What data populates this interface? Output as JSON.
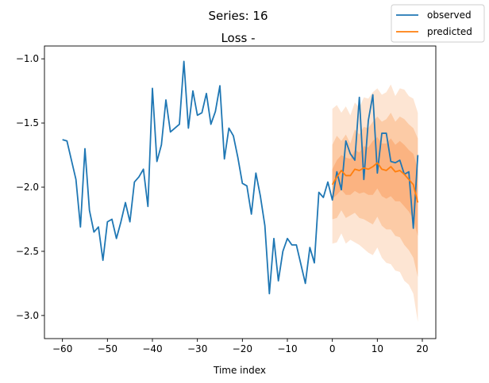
{
  "chart_data": {
    "type": "line",
    "title": "Series: 16",
    "subtitle": "Loss -",
    "xlabel": "Time index",
    "ylabel": "",
    "xlim": [
      -64,
      23
    ],
    "ylim": [
      -3.18,
      -0.9
    ],
    "xticks": [
      -60,
      -50,
      -40,
      -30,
      -20,
      -10,
      0,
      10,
      20
    ],
    "yticks": [
      -3.0,
      -2.5,
      -2.0,
      -1.5,
      -1.0
    ],
    "grid": false,
    "legend": "upper-right-outside",
    "colors": {
      "observed": "#1f77b4",
      "predicted": "#ff7f0e",
      "band_outer": "#fde5d3",
      "band_mid": "#fccba6",
      "band_inner": "#fbb381"
    },
    "series": [
      {
        "name": "observed",
        "x": [
          -60,
          -59,
          -58,
          -57,
          -56,
          -55,
          -54,
          -53,
          -52,
          -51,
          -50,
          -49,
          -48,
          -47,
          -46,
          -45,
          -44,
          -43,
          -42,
          -41,
          -40,
          -39,
          -38,
          -37,
          -36,
          -35,
          -34,
          -33,
          -32,
          -31,
          -30,
          -29,
          -28,
          -27,
          -26,
          -25,
          -24,
          -23,
          -22,
          -21,
          -20,
          -19,
          -18,
          -17,
          -16,
          -15,
          -14,
          -13,
          -12,
          -11,
          -10,
          -9,
          -8,
          -7,
          -6,
          -5,
          -4,
          -3,
          -2,
          -1,
          0,
          1,
          2,
          3,
          4,
          5,
          6,
          7,
          8,
          9,
          10,
          11,
          12,
          13,
          14,
          15,
          16,
          17,
          18,
          19
        ],
        "values": [
          -1.63,
          -1.64,
          -1.79,
          -1.94,
          -2.31,
          -1.7,
          -2.18,
          -2.35,
          -2.31,
          -2.57,
          -2.27,
          -2.25,
          -2.4,
          -2.27,
          -2.12,
          -2.27,
          -1.96,
          -1.92,
          -1.86,
          -2.15,
          -1.23,
          -1.8,
          -1.67,
          -1.32,
          -1.57,
          -1.54,
          -1.51,
          -1.02,
          -1.54,
          -1.25,
          -1.44,
          -1.42,
          -1.27,
          -1.51,
          -1.41,
          -1.21,
          -1.78,
          -1.54,
          -1.6,
          -1.77,
          -1.97,
          -1.99,
          -2.21,
          -1.89,
          -2.07,
          -2.3,
          -2.83,
          -2.4,
          -2.73,
          -2.5,
          -2.4,
          -2.45,
          -2.45,
          -2.6,
          -2.75,
          -2.47,
          -2.59,
          -2.04,
          -2.08,
          -1.96,
          -2.1,
          -1.88,
          -2.02,
          -1.64,
          -1.74,
          -1.79,
          -1.3,
          -1.94,
          -1.48,
          -1.28,
          -1.89,
          -1.58,
          -1.58,
          -1.8,
          -1.81,
          -1.79,
          -1.9,
          -1.88,
          -2.32,
          -1.75
        ]
      },
      {
        "name": "predicted",
        "x": [
          0,
          1,
          2,
          3,
          4,
          5,
          6,
          7,
          8,
          9,
          10,
          11,
          12,
          13,
          14,
          15,
          16,
          17,
          18,
          19
        ],
        "values": [
          -1.98,
          -1.92,
          -1.87,
          -1.91,
          -1.91,
          -1.86,
          -1.87,
          -1.85,
          -1.86,
          -1.84,
          -1.81,
          -1.86,
          -1.87,
          -1.84,
          -1.88,
          -1.87,
          -1.9,
          -1.94,
          -1.98,
          -2.12
        ],
        "band_outer": {
          "lower": [
            -2.44,
            -2.43,
            -2.36,
            -2.44,
            -2.41,
            -2.43,
            -2.45,
            -2.48,
            -2.51,
            -2.53,
            -2.47,
            -2.55,
            -2.59,
            -2.6,
            -2.65,
            -2.66,
            -2.73,
            -2.76,
            -2.83,
            -3.05
          ],
          "upper": [
            -1.39,
            -1.36,
            -1.42,
            -1.37,
            -1.44,
            -1.34,
            -1.38,
            -1.3,
            -1.31,
            -1.26,
            -1.23,
            -1.28,
            -1.26,
            -1.2,
            -1.29,
            -1.23,
            -1.24,
            -1.29,
            -1.31,
            -1.42
          ]
        },
        "band_mid": {
          "lower": [
            -2.25,
            -2.24,
            -2.18,
            -2.24,
            -2.22,
            -2.2,
            -2.24,
            -2.25,
            -2.27,
            -2.29,
            -2.23,
            -2.3,
            -2.33,
            -2.33,
            -2.38,
            -2.39,
            -2.45,
            -2.49,
            -2.55,
            -2.7
          ],
          "upper": [
            -1.67,
            -1.6,
            -1.64,
            -1.59,
            -1.66,
            -1.55,
            -1.59,
            -1.53,
            -1.54,
            -1.49,
            -1.45,
            -1.49,
            -1.47,
            -1.42,
            -1.49,
            -1.45,
            -1.47,
            -1.51,
            -1.54,
            -1.62
          ]
        },
        "band_inner": {
          "lower": [
            -2.09,
            -2.06,
            -2.02,
            -2.06,
            -2.06,
            -2.03,
            -2.05,
            -2.04,
            -2.06,
            -2.06,
            -2.01,
            -2.07,
            -2.09,
            -2.07,
            -2.11,
            -2.11,
            -2.15,
            -2.19,
            -2.25,
            -2.38
          ],
          "upper": [
            -1.86,
            -1.79,
            -1.75,
            -1.77,
            -1.78,
            -1.71,
            -1.73,
            -1.68,
            -1.69,
            -1.64,
            -1.61,
            -1.66,
            -1.66,
            -1.62,
            -1.67,
            -1.64,
            -1.67,
            -1.71,
            -1.74,
            -1.86
          ]
        }
      }
    ]
  }
}
